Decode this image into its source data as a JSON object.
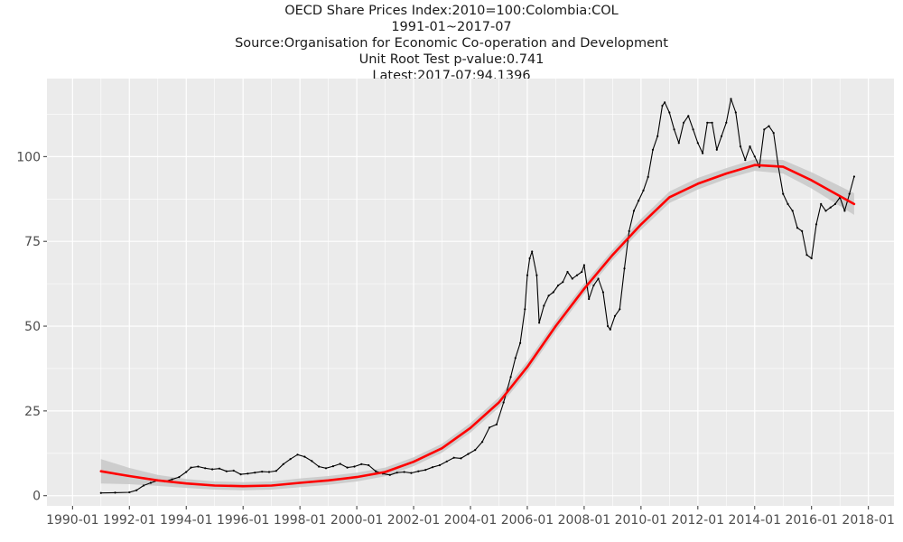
{
  "chart_data": {
    "type": "line",
    "title_lines": [
      "OECD Share Prices Index:2010=100:Colombia:COL",
      "1991-01~2017-07",
      "Source:Organisation for Economic Co-operation and Development",
      "Unit Root Test p-value:0.741",
      "Latest:2017-07:94.1396"
    ],
    "xlabel": "",
    "ylabel": "",
    "x_range": [
      "1990-01",
      "2018-01"
    ],
    "ylim": [
      -3,
      123
    ],
    "grid": true,
    "legend": "none",
    "x_ticks": [
      "1990-01",
      "1992-01",
      "1994-01",
      "1996-01",
      "1998-01",
      "2000-01",
      "2002-01",
      "2004-01",
      "2006-01",
      "2008-01",
      "2010-01",
      "2012-01",
      "2014-01",
      "2016-01",
      "2018-01"
    ],
    "y_ticks": [
      0,
      25,
      50,
      75,
      100
    ],
    "colors": {
      "panel": "#ebebeb",
      "grid": "#ffffff",
      "series": "#000000",
      "trend": "#ff0000",
      "band": "#c8c8c8"
    },
    "series": [
      {
        "style": "line-with-points",
        "x": [
          "1991-01",
          "1991-07",
          "1992-01",
          "1992-04",
          "1992-07",
          "1992-10",
          "1993-01",
          "1993-04",
          "1993-07",
          "1993-10",
          "1994-01",
          "1994-03",
          "1994-06",
          "1994-09",
          "1994-12",
          "1995-03",
          "1995-06",
          "1995-09",
          "1995-12",
          "1996-03",
          "1996-06",
          "1996-09",
          "1996-12",
          "1997-03",
          "1997-06",
          "1997-09",
          "1997-12",
          "1998-03",
          "1998-06",
          "1998-09",
          "1998-12",
          "1999-03",
          "1999-06",
          "1999-09",
          "1999-12",
          "2000-03",
          "2000-06",
          "2000-09",
          "2000-12",
          "2001-03",
          "2001-06",
          "2001-09",
          "2001-12",
          "2002-03",
          "2002-06",
          "2002-09",
          "2002-12",
          "2003-03",
          "2003-06",
          "2003-09",
          "2003-12",
          "2004-03",
          "2004-06",
          "2004-09",
          "2004-12",
          "2005-03",
          "2005-06",
          "2005-08",
          "2005-10",
          "2005-12",
          "2006-01",
          "2006-02",
          "2006-03",
          "2006-05",
          "2006-06",
          "2006-08",
          "2006-10",
          "2006-12",
          "2007-02",
          "2007-04",
          "2007-06",
          "2007-08",
          "2007-10",
          "2007-12",
          "2008-01",
          "2008-03",
          "2008-05",
          "2008-07",
          "2008-09",
          "2008-11",
          "2008-12",
          "2009-02",
          "2009-04",
          "2009-06",
          "2009-08",
          "2009-10",
          "2009-12",
          "2010-02",
          "2010-04",
          "2010-06",
          "2010-08",
          "2010-10",
          "2010-11",
          "2011-01",
          "2011-03",
          "2011-05",
          "2011-07",
          "2011-09",
          "2011-11",
          "2012-01",
          "2012-03",
          "2012-05",
          "2012-07",
          "2012-09",
          "2012-11",
          "2013-01",
          "2013-03",
          "2013-05",
          "2013-07",
          "2013-09",
          "2013-11",
          "2014-01",
          "2014-03",
          "2014-05",
          "2014-07",
          "2014-09",
          "2014-11",
          "2015-01",
          "2015-03",
          "2015-05",
          "2015-07",
          "2015-09",
          "2015-11",
          "2016-01",
          "2016-03",
          "2016-05",
          "2016-07",
          "2016-09",
          "2016-11",
          "2017-01",
          "2017-03",
          "2017-05",
          "2017-07"
        ],
        "y": [
          0.8,
          0.9,
          1.0,
          1.6,
          3.0,
          3.8,
          4.5,
          4.2,
          4.8,
          5.5,
          7.0,
          8.3,
          8.6,
          8.1,
          7.8,
          8.0,
          7.2,
          7.4,
          6.3,
          6.5,
          6.8,
          7.1,
          7.0,
          7.3,
          9.3,
          10.8,
          12.1,
          11.5,
          10.2,
          8.6,
          8.1,
          8.7,
          9.4,
          8.3,
          8.6,
          9.3,
          9.0,
          7.2,
          6.5,
          6.1,
          6.8,
          7.0,
          6.7,
          7.2,
          7.6,
          8.4,
          9.0,
          10.1,
          11.2,
          11.0,
          12.3,
          13.5,
          15.9,
          20.1,
          21.0,
          27.5,
          35.0,
          40.6,
          45.0,
          55.0,
          65.0,
          70.0,
          72.0,
          65.0,
          51.0,
          56.0,
          59.0,
          60.0,
          62.0,
          63.0,
          66.0,
          64.0,
          65.0,
          66.0,
          68.0,
          58.0,
          62.0,
          64.0,
          60.0,
          50.0,
          49.0,
          53.0,
          55.0,
          67.0,
          78.0,
          84.0,
          87.0,
          90.0,
          94.0,
          102.0,
          106.0,
          115.0,
          116.0,
          113.0,
          108.0,
          104.0,
          110.0,
          112.0,
          108.0,
          104.0,
          101.0,
          110.0,
          110.0,
          102.0,
          106.0,
          110.0,
          117.0,
          113.0,
          103.0,
          99.0,
          103.0,
          100.0,
          97.0,
          108.0,
          109.0,
          107.0,
          97.0,
          89.0,
          86.0,
          84.0,
          79.0,
          78.0,
          71.0,
          70.0,
          80.0,
          86.0,
          84.0,
          85.0,
          86.0,
          88.0,
          84.0,
          89.0,
          94.1
        ]
      },
      {
        "style": "smooth-trend",
        "x": [
          "1991-01",
          "1992-01",
          "1993-01",
          "1994-01",
          "1995-01",
          "1996-01",
          "1997-01",
          "1998-01",
          "1999-01",
          "2000-01",
          "2001-01",
          "2002-01",
          "2003-01",
          "2004-01",
          "2005-01",
          "2006-01",
          "2007-01",
          "2008-01",
          "2009-01",
          "2010-01",
          "2011-01",
          "2012-01",
          "2013-01",
          "2014-01",
          "2015-01",
          "2016-01",
          "2017-07"
        ],
        "y": [
          7.2,
          5.8,
          4.5,
          3.6,
          3.0,
          2.8,
          3.0,
          3.8,
          4.5,
          5.5,
          7.0,
          10.0,
          14.0,
          20.0,
          27.5,
          38.0,
          50.0,
          61.0,
          71.0,
          80.0,
          88.0,
          92.0,
          95.0,
          97.5,
          97.0,
          93.0,
          86.0
        ],
        "band_halfwidth": [
          3.6,
          2.4,
          1.6,
          1.3,
          1.2,
          1.2,
          1.2,
          1.3,
          1.3,
          1.3,
          1.3,
          1.3,
          1.3,
          1.4,
          1.5,
          1.6,
          1.6,
          1.5,
          1.5,
          1.6,
          1.7,
          1.7,
          1.6,
          1.7,
          2.0,
          2.4,
          3.2
        ]
      }
    ]
  }
}
